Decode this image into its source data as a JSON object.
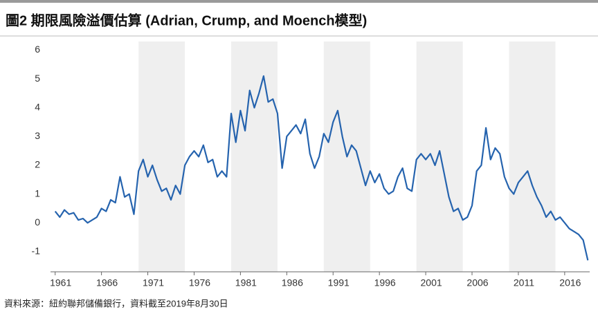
{
  "chart_data": {
    "type": "line",
    "title": "圖2 期限風險溢價估算 (Adrian, Crump, and Moench模型)",
    "source": "資料來源：紐約聯邦儲備銀行，資料截至2019年8月30日",
    "xlim": [
      1960.5,
      2018.7
    ],
    "ylim": [
      -1.7,
      6.3
    ],
    "xticks": [
      1961,
      1966,
      1971,
      1976,
      1981,
      1986,
      1991,
      1996,
      2001,
      2006,
      2011,
      2016
    ],
    "yticks": [
      -1,
      0,
      1,
      2,
      3,
      4,
      5,
      6
    ],
    "bands": [
      [
        1970,
        1975
      ],
      [
        1980,
        1985
      ],
      [
        1990,
        1995
      ],
      [
        2000,
        2005
      ],
      [
        2010,
        2015
      ]
    ],
    "band_color": "#efefef",
    "series": [
      {
        "color": "#2563ae",
        "x": [
          1961,
          1961.5,
          1962,
          1962.5,
          1963,
          1963.5,
          1964,
          1964.5,
          1965,
          1965.5,
          1966,
          1966.5,
          1967,
          1967.5,
          1968,
          1968.5,
          1969,
          1969.5,
          1970,
          1970.5,
          1971,
          1971.5,
          1972,
          1972.5,
          1973,
          1973.5,
          1974,
          1974.5,
          1975,
          1975.5,
          1976,
          1976.5,
          1977,
          1977.5,
          1978,
          1978.5,
          1979,
          1979.5,
          1980,
          1980.5,
          1981,
          1981.5,
          1982,
          1982.5,
          1983,
          1983.5,
          1984,
          1984.5,
          1985,
          1985.5,
          1986,
          1986.5,
          1987,
          1987.5,
          1988,
          1988.5,
          1989,
          1989.5,
          1990,
          1990.5,
          1991,
          1991.5,
          1992,
          1992.5,
          1993,
          1993.5,
          1994,
          1994.5,
          1995,
          1995.5,
          1996,
          1996.5,
          1997,
          1997.5,
          1998,
          1998.5,
          1999,
          1999.5,
          2000,
          2000.5,
          2001,
          2001.5,
          2002,
          2002.5,
          2003,
          2003.5,
          2004,
          2004.5,
          2005,
          2005.5,
          2006,
          2006.5,
          2007,
          2007.5,
          2008,
          2008.5,
          2009,
          2009.5,
          2010,
          2010.5,
          2011,
          2011.5,
          2012,
          2012.5,
          2013,
          2013.5,
          2014,
          2014.5,
          2015,
          2015.5,
          2016,
          2016.5,
          2017,
          2017.5,
          2018,
          2018.5
        ],
        "values": [
          0.4,
          0.2,
          0.45,
          0.3,
          0.35,
          0.1,
          0.15,
          0.0,
          0.1,
          0.2,
          0.5,
          0.4,
          0.8,
          0.7,
          1.6,
          0.9,
          1.0,
          0.3,
          1.8,
          2.2,
          1.6,
          2.0,
          1.5,
          1.1,
          1.2,
          0.8,
          1.3,
          1.0,
          2.0,
          2.3,
          2.5,
          2.3,
          2.7,
          2.1,
          2.2,
          1.6,
          1.8,
          1.6,
          3.8,
          2.8,
          3.9,
          3.2,
          4.6,
          4.0,
          4.5,
          5.1,
          4.2,
          4.3,
          3.8,
          1.9,
          3.0,
          3.2,
          3.4,
          3.1,
          3.6,
          2.4,
          1.9,
          2.3,
          3.1,
          2.8,
          3.5,
          3.9,
          3.0,
          2.3,
          2.7,
          2.5,
          1.9,
          1.3,
          1.8,
          1.4,
          1.7,
          1.2,
          1.0,
          1.1,
          1.6,
          1.9,
          1.2,
          1.1,
          2.2,
          2.4,
          2.2,
          2.4,
          2.0,
          2.5,
          1.7,
          0.9,
          0.4,
          0.5,
          0.1,
          0.2,
          0.6,
          1.8,
          2.0,
          3.3,
          2.2,
          2.6,
          2.4,
          1.6,
          1.2,
          1.0,
          1.4,
          1.6,
          1.8,
          1.3,
          0.9,
          0.6,
          0.2,
          0.4,
          0.1,
          0.2,
          0.0,
          -0.2,
          -0.3,
          -0.4,
          -0.6,
          -1.3
        ]
      }
    ]
  }
}
